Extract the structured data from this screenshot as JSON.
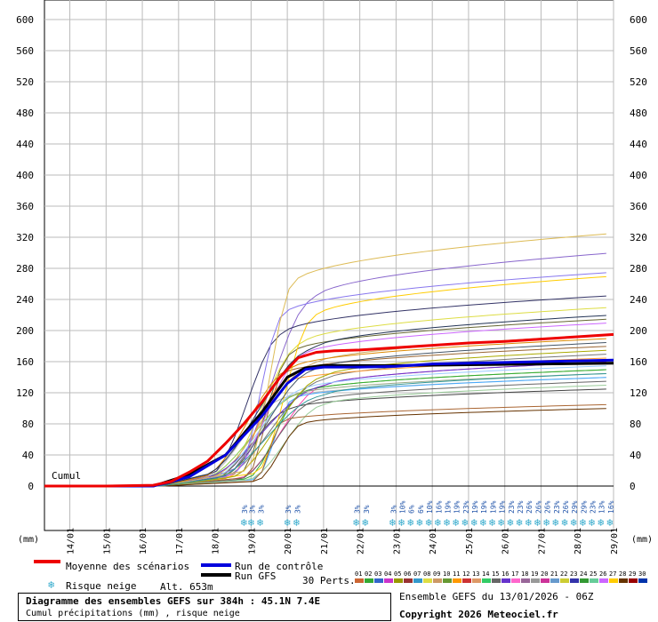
{
  "chart_data": {
    "type": "line",
    "title": "Diagramme des ensembles GEFS sur 384h : 45.1N 7.4E",
    "subtitle": "Cumul précipitations (mm) , risque neige",
    "ylabel": "(mm)",
    "series_label": "Cumul",
    "ylim": [
      0,
      600
    ],
    "y_ticks": [
      0,
      40,
      80,
      120,
      160,
      200,
      240,
      280,
      320,
      360,
      400,
      440,
      480,
      520,
      560,
      600
    ],
    "x_dates": [
      "14/01",
      "15/01",
      "16/01",
      "17/01",
      "18/01",
      "19/01",
      "20/01",
      "21/01",
      "22/01",
      "23/01",
      "24/01",
      "25/01",
      "26/01",
      "27/01",
      "28/01",
      "29/01"
    ],
    "snow_days": [
      {
        "x": 18.8,
        "pct": "3%"
      },
      {
        "x": 19.0,
        "pct": "3%"
      },
      {
        "x": 19.25,
        "pct": "3%"
      },
      {
        "x": 20.0,
        "pct": "3%"
      },
      {
        "x": 20.25,
        "pct": "3%"
      },
      {
        "x": 21.9,
        "pct": "3%"
      },
      {
        "x": 22.15,
        "pct": "3%"
      },
      {
        "x": 22.9,
        "pct": "3%"
      },
      {
        "x": 23.15,
        "pct": "10%"
      },
      {
        "x": 23.4,
        "pct": "6%"
      },
      {
        "x": 23.65,
        "pct": "6%"
      },
      {
        "x": 23.9,
        "pct": "10%"
      },
      {
        "x": 24.15,
        "pct": "16%"
      },
      {
        "x": 24.4,
        "pct": "19%"
      },
      {
        "x": 24.65,
        "pct": "19%"
      },
      {
        "x": 24.9,
        "pct": "23%"
      },
      {
        "x": 25.15,
        "pct": "19%"
      },
      {
        "x": 25.4,
        "pct": "19%"
      },
      {
        "x": 25.65,
        "pct": "19%"
      },
      {
        "x": 25.9,
        "pct": "19%"
      },
      {
        "x": 26.15,
        "pct": "23%"
      },
      {
        "x": 26.4,
        "pct": "23%"
      },
      {
        "x": 26.65,
        "pct": "26%"
      },
      {
        "x": 26.9,
        "pct": "26%"
      },
      {
        "x": 27.15,
        "pct": "26%"
      },
      {
        "x": 27.4,
        "pct": "23%"
      },
      {
        "x": 27.65,
        "pct": "26%"
      },
      {
        "x": 27.9,
        "pct": "29%"
      },
      {
        "x": 28.15,
        "pct": "29%"
      },
      {
        "x": 28.4,
        "pct": "23%"
      },
      {
        "x": 28.65,
        "pct": "13%"
      },
      {
        "x": 28.9,
        "pct": "16%"
      }
    ],
    "mean": {
      "name": "Moyenne des scénarios",
      "color": "#ee0000",
      "points": [
        [
          13.3,
          0
        ],
        [
          15.0,
          0
        ],
        [
          16.3,
          1
        ],
        [
          16.8,
          6
        ],
        [
          17.3,
          18
        ],
        [
          17.8,
          32
        ],
        [
          18.3,
          55
        ],
        [
          18.8,
          80
        ],
        [
          19.3,
          108
        ],
        [
          19.8,
          140
        ],
        [
          20.3,
          165
        ],
        [
          20.8,
          172
        ],
        [
          21.3,
          174
        ],
        [
          22.0,
          175
        ],
        [
          23.0,
          178
        ],
        [
          24.0,
          181
        ],
        [
          25.0,
          184
        ],
        [
          26.0,
          186
        ],
        [
          27.0,
          189
        ],
        [
          28.0,
          192
        ],
        [
          29.0,
          195
        ]
      ]
    },
    "control": {
      "name": "Run de contrôle",
      "color": "#0000dd",
      "points": [
        [
          13.3,
          0
        ],
        [
          16.3,
          0
        ],
        [
          17.3,
          12
        ],
        [
          18.3,
          40
        ],
        [
          19.3,
          90
        ],
        [
          20.0,
          132
        ],
        [
          20.5,
          150
        ],
        [
          21.0,
          153
        ],
        [
          22.0,
          153
        ],
        [
          23.0,
          154
        ],
        [
          24.0,
          157
        ],
        [
          25.0,
          158
        ],
        [
          26.0,
          159
        ],
        [
          27.0,
          160
        ],
        [
          28.0,
          161
        ],
        [
          29.0,
          162
        ]
      ]
    },
    "gfs": {
      "name": "Run GFS",
      "color": "#000000",
      "points": [
        [
          13.3,
          0
        ],
        [
          16.3,
          0
        ],
        [
          17.3,
          15
        ],
        [
          18.3,
          40
        ],
        [
          19.3,
          95
        ],
        [
          20.0,
          140
        ],
        [
          20.5,
          152
        ],
        [
          21.0,
          155
        ],
        [
          23.0,
          155
        ],
        [
          25.0,
          156
        ],
        [
          27.0,
          157
        ],
        [
          29.0,
          158
        ]
      ]
    },
    "members": [
      {
        "color": "#bbbbbb",
        "final": 140
      },
      {
        "color": "#444444",
        "final": 125
      },
      {
        "color": "#dddd44",
        "final": 230
      },
      {
        "color": "#8866cc",
        "final": 300
      },
      {
        "color": "#ff44aa",
        "final": 160
      },
      {
        "color": "#996633",
        "final": 180
      },
      {
        "color": "#44aaff",
        "final": 140
      },
      {
        "color": "#88cc44",
        "final": 150
      },
      {
        "color": "#ccaa66",
        "final": 195
      },
      {
        "color": "#777777",
        "final": 170
      },
      {
        "color": "#ff9933",
        "final": 165
      },
      {
        "color": "#666633",
        "final": 215
      },
      {
        "color": "#33aa33",
        "final": 150
      },
      {
        "color": "#ffcc00",
        "final": 270
      },
      {
        "color": "#6633cc",
        "final": 160
      },
      {
        "color": "#333366",
        "final": 245
      },
      {
        "color": "#99aa88",
        "final": 145
      },
      {
        "color": "#cc66ff",
        "final": 210
      },
      {
        "color": "#666666",
        "final": 135
      },
      {
        "color": "#99cc99",
        "final": 130
      },
      {
        "color": "#aa6633",
        "final": 105
      },
      {
        "color": "#dd8800",
        "final": 190
      },
      {
        "color": "#99ccff",
        "final": 155
      },
      {
        "color": "#445566",
        "final": 185
      },
      {
        "color": "#aaaa00",
        "final": 175
      },
      {
        "color": "#8877ee",
        "final": 275
      },
      {
        "color": "#ddbb55",
        "final": 325
      },
      {
        "color": "#663300",
        "final": 100
      },
      {
        "color": "#223355",
        "final": 220
      },
      {
        "color": "#339999",
        "final": 145
      }
    ]
  },
  "legend": {
    "mean": "Moyenne des scénarios",
    "control": "Run de contrôle",
    "gfs": "Run GFS",
    "snow": "Risque neige",
    "altitude": "Alt. 653m",
    "perts": "30 Perts.",
    "perturbation_ids": [
      "01",
      "02",
      "03",
      "04",
      "05",
      "06",
      "07",
      "08",
      "09",
      "10",
      "11",
      "12",
      "13",
      "14",
      "15",
      "16",
      "17",
      "18",
      "19",
      "20",
      "21",
      "22",
      "23",
      "24",
      "25",
      "26",
      "27",
      "28",
      "29",
      "30"
    ],
    "perturbation_colors": [
      "#cc6633",
      "#33aa33",
      "#3366cc",
      "#cc33cc",
      "#999900",
      "#993333",
      "#3399cc",
      "#dddd44",
      "#cc9966",
      "#669933",
      "#ff9900",
      "#cc3333",
      "#dd9966",
      "#33cc66",
      "#666666",
      "#6633cc",
      "#ff66cc",
      "#996699",
      "#999999",
      "#cc3399",
      "#6699cc",
      "#cccc33",
      "#3333aa",
      "#339933",
      "#66cc99",
      "#cc66ff",
      "#ffcc00",
      "#663300",
      "#990000",
      "#0033aa"
    ]
  },
  "footer": {
    "title": "Diagramme des ensembles GEFS sur 384h : 45.1N 7.4E",
    "subtitle": "Cumul précipitations (mm) , risque neige",
    "run": "Ensemble GEFS du 13/01/2026 - 06Z",
    "copyright": "Copyright 2026 Meteociel.fr"
  }
}
